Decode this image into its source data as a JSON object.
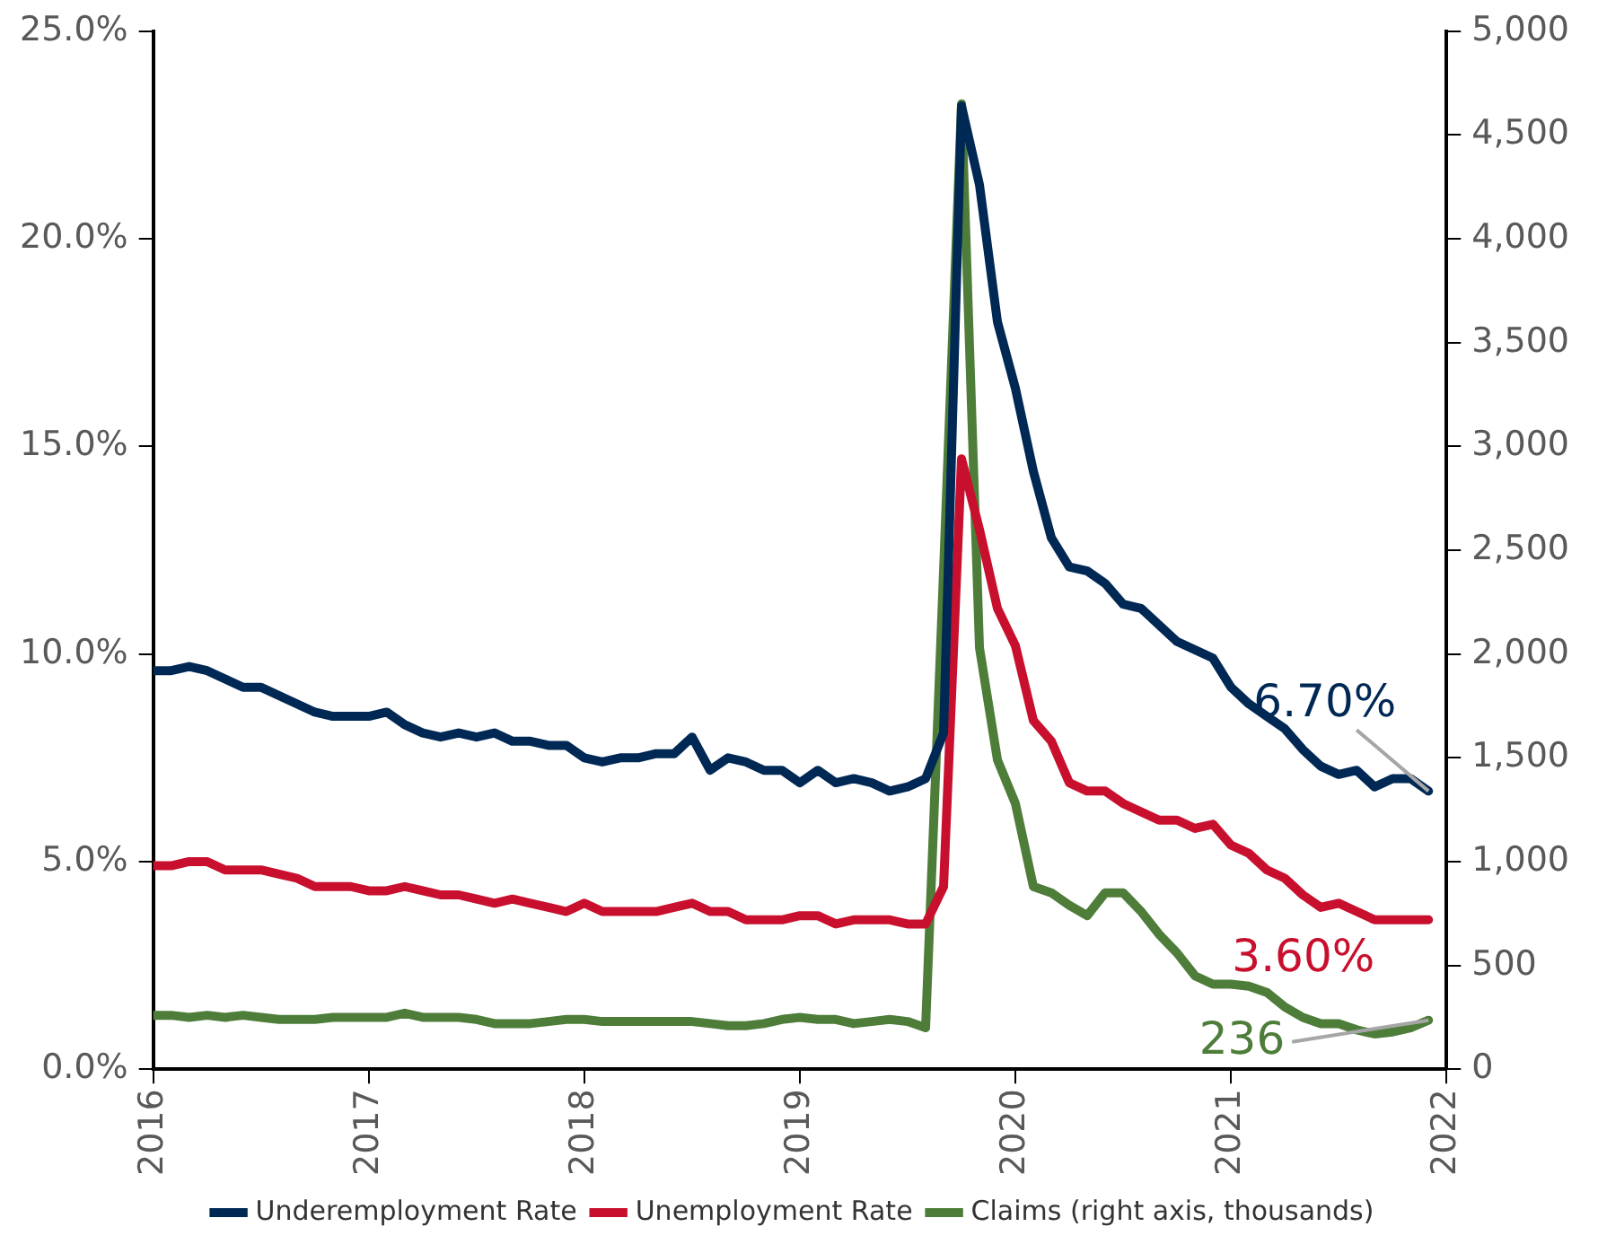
{
  "chart_data": {
    "type": "line",
    "x": [
      "2016-01",
      "2016-02",
      "2016-03",
      "2016-04",
      "2016-05",
      "2016-06",
      "2016-07",
      "2016-08",
      "2016-09",
      "2016-10",
      "2016-11",
      "2016-12",
      "2017-01",
      "2017-02",
      "2017-03",
      "2017-04",
      "2017-05",
      "2017-06",
      "2017-07",
      "2017-08",
      "2017-09",
      "2017-10",
      "2017-11",
      "2017-12",
      "2018-01",
      "2018-02",
      "2018-03",
      "2018-04",
      "2018-05",
      "2018-06",
      "2018-07",
      "2018-08",
      "2018-09",
      "2018-10",
      "2018-11",
      "2018-12",
      "2019-01",
      "2019-02",
      "2019-03",
      "2019-04",
      "2019-05",
      "2019-06",
      "2019-07",
      "2019-08",
      "2019-09",
      "2019-10",
      "2019-11",
      "2019-12",
      "2020-01",
      "2020-02",
      "2020-03",
      "2020-04",
      "2020-05",
      "2020-06",
      "2020-07",
      "2020-08",
      "2020-09",
      "2020-10",
      "2020-11",
      "2020-12",
      "2021-01",
      "2021-02",
      "2021-03",
      "2021-04",
      "2021-05",
      "2021-06",
      "2021-07",
      "2021-08",
      "2021-09",
      "2021-10",
      "2021-11",
      "2021-12"
    ],
    "series": [
      {
        "name": "Underemployment Rate",
        "color": "#002855",
        "values": [
          9.6,
          9.6,
          9.7,
          9.6,
          9.4,
          9.2,
          9.2,
          9.0,
          8.8,
          8.6,
          8.5,
          8.5,
          8.5,
          8.6,
          8.3,
          8.1,
          8.0,
          8.1,
          8.0,
          8.1,
          7.9,
          7.9,
          7.8,
          7.8,
          7.5,
          7.4,
          7.5,
          7.5,
          7.6,
          7.6,
          8.0,
          7.2,
          7.5,
          7.4,
          7.2,
          7.2,
          6.9,
          7.2,
          6.9,
          7.0,
          6.9,
          6.7,
          6.8,
          7.0,
          8.1,
          23.2,
          21.3,
          18.0,
          16.4,
          14.4,
          12.8,
          12.1,
          12.0,
          11.7,
          11.2,
          11.1,
          10.7,
          10.3,
          10.1,
          9.9,
          9.2,
          8.8,
          8.5,
          8.2,
          7.7,
          7.3,
          7.1,
          7.2,
          6.8,
          7.0,
          7.0,
          6.7
        ],
        "value_labels": [
          null,
          null,
          null,
          null,
          null,
          null,
          null,
          null,
          null,
          null,
          null,
          null,
          null,
          null,
          null,
          null,
          null,
          null,
          null,
          null,
          null,
          null,
          null,
          null,
          null,
          null,
          null,
          null,
          null,
          null,
          null,
          null,
          null,
          null,
          null,
          null,
          null,
          null,
          null,
          null,
          null,
          null,
          null,
          null,
          null,
          null,
          null,
          null,
          null,
          null,
          null,
          null,
          null,
          null,
          null,
          null,
          null,
          null,
          null,
          null,
          null,
          null,
          null,
          null,
          null,
          null,
          null,
          null,
          null,
          null,
          null,
          "6.70%"
        ]
      },
      {
        "name": "Unemployment Rate",
        "color": "#c8102e",
        "values": [
          4.9,
          4.9,
          5.0,
          5.0,
          4.8,
          4.8,
          4.8,
          4.7,
          4.6,
          4.4,
          4.4,
          4.4,
          4.3,
          4.3,
          4.4,
          4.3,
          4.2,
          4.2,
          4.1,
          4.0,
          4.1,
          4.0,
          3.9,
          3.8,
          4.0,
          3.8,
          3.8,
          3.8,
          3.8,
          3.9,
          4.0,
          3.8,
          3.8,
          3.6,
          3.6,
          3.6,
          3.7,
          3.7,
          3.5,
          3.6,
          3.6,
          3.6,
          3.5,
          3.5,
          4.4,
          14.7,
          13.0,
          11.1,
          10.2,
          8.4,
          7.9,
          6.9,
          6.7,
          6.7,
          6.4,
          6.2,
          6.0,
          6.0,
          5.8,
          5.9,
          5.4,
          5.2,
          4.8,
          4.6,
          4.2,
          3.9,
          4.0,
          3.8,
          3.6,
          3.6,
          3.6,
          3.6
        ],
        "value_labels": [
          null,
          null,
          null,
          null,
          null,
          null,
          null,
          null,
          null,
          null,
          null,
          null,
          null,
          null,
          null,
          null,
          null,
          null,
          null,
          null,
          null,
          null,
          null,
          null,
          null,
          null,
          null,
          null,
          null,
          null,
          null,
          null,
          null,
          null,
          null,
          null,
          null,
          null,
          null,
          null,
          null,
          null,
          null,
          null,
          null,
          null,
          null,
          null,
          null,
          null,
          null,
          null,
          null,
          null,
          null,
          null,
          null,
          null,
          null,
          null,
          null,
          null,
          null,
          null,
          null,
          null,
          null,
          null,
          null,
          null,
          null,
          "3.60%"
        ]
      },
      {
        "name": "Claims (right axis, thousands)",
        "color": "#4e7d3a",
        "axis": "y2",
        "values": [
          260,
          260,
          250,
          260,
          250,
          260,
          250,
          240,
          240,
          240,
          250,
          250,
          250,
          250,
          270,
          250,
          250,
          250,
          240,
          220,
          220,
          220,
          230,
          240,
          240,
          230,
          230,
          230,
          230,
          230,
          230,
          220,
          210,
          210,
          220,
          240,
          250,
          240,
          240,
          220,
          230,
          240,
          230,
          200,
          2400,
          4650,
          2030,
          1490,
          1280,
          880,
          850,
          790,
          740,
          850,
          850,
          760,
          650,
          560,
          450,
          410,
          410,
          400,
          370,
          300,
          250,
          220,
          220,
          190,
          170,
          180,
          200,
          236
        ],
        "value_labels": [
          null,
          null,
          null,
          null,
          null,
          null,
          null,
          null,
          null,
          null,
          null,
          null,
          null,
          null,
          null,
          null,
          null,
          null,
          null,
          null,
          null,
          null,
          null,
          null,
          null,
          null,
          null,
          null,
          null,
          null,
          null,
          null,
          null,
          null,
          null,
          null,
          null,
          null,
          null,
          null,
          null,
          null,
          null,
          null,
          null,
          null,
          null,
          null,
          null,
          null,
          null,
          null,
          null,
          null,
          null,
          null,
          null,
          null,
          null,
          null,
          null,
          null,
          null,
          null,
          null,
          null,
          null,
          null,
          null,
          null,
          null,
          "236"
        ]
      }
    ],
    "xlim": [
      "2016",
      "2022"
    ],
    "xticks": [
      "2016",
      "2017",
      "2018",
      "2019",
      "2020",
      "2021",
      "2022"
    ],
    "ylim": [
      0,
      25
    ],
    "yticks": [
      {
        "value": 0,
        "label": "0.0%"
      },
      {
        "value": 5,
        "label": "5.0%"
      },
      {
        "value": 10,
        "label": "10.0%"
      },
      {
        "value": 15,
        "label": "15.0%"
      },
      {
        "value": 20,
        "label": "20.0%"
      },
      {
        "value": 25,
        "label": "25.0%"
      }
    ],
    "y2lim": [
      0,
      5000
    ],
    "y2ticks": [
      0,
      {
        "value": 500,
        "label": "500"
      },
      {
        "value": 1000,
        "label": "1,000"
      },
      {
        "value": 1500,
        "label": "1,500"
      },
      {
        "value": 2000,
        "label": "2,000"
      },
      {
        "value": 2500,
        "label": "2,500"
      },
      {
        "value": 3000,
        "label": "3,000"
      },
      {
        "value": 3500,
        "label": "3,500"
      },
      {
        "value": 4000,
        "label": "4,000"
      },
      {
        "value": 4500,
        "label": "4,500"
      },
      {
        "value": 5000,
        "label": "5,000"
      }
    ],
    "grid": false,
    "legend": "bottom",
    "marker": "none",
    "line_style": "solid"
  }
}
